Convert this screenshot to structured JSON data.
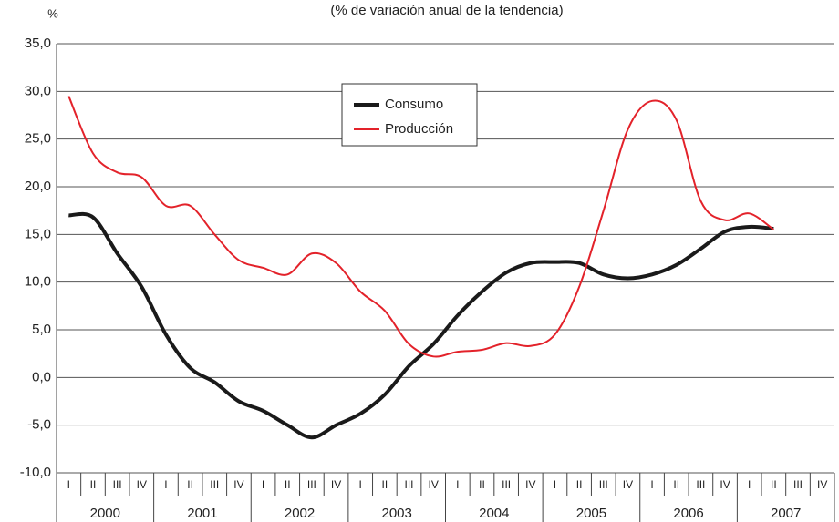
{
  "chart_data": {
    "type": "line",
    "title": "(% de variación anual de la tendencia)",
    "y_label": "%",
    "categories": [
      "I",
      "II",
      "III",
      "IV",
      "I",
      "II",
      "III",
      "IV",
      "I",
      "II",
      "III",
      "IV",
      "I",
      "II",
      "III",
      "IV",
      "I",
      "II",
      "III",
      "IV",
      "I",
      "II",
      "III",
      "IV",
      "I",
      "II",
      "III",
      "IV",
      "I",
      "II",
      "III",
      "IV"
    ],
    "years": [
      "2000",
      "2001",
      "2002",
      "2003",
      "2004",
      "2005",
      "2006",
      "2007"
    ],
    "series": [
      {
        "name": "Consumo",
        "color": "#1a1a1a",
        "values": [
          17.0,
          16.8,
          13.0,
          9.5,
          4.5,
          1.0,
          -0.5,
          -2.5,
          -3.5,
          -5.0,
          -6.3,
          -5.0,
          -3.8,
          -1.8,
          1.2,
          3.5,
          6.5,
          9.0,
          11.0,
          12.0,
          12.1,
          12.0,
          10.8,
          10.4,
          10.8,
          11.8,
          13.5,
          15.3,
          15.8,
          15.6,
          null,
          null
        ]
      },
      {
        "name": "Producción",
        "color": "#e3222a",
        "values": [
          29.5,
          23.5,
          21.5,
          21.0,
          18.0,
          18.0,
          15.0,
          12.3,
          11.5,
          10.8,
          13.0,
          12.0,
          9.0,
          7.0,
          3.5,
          2.2,
          2.7,
          2.9,
          3.6,
          3.3,
          4.5,
          9.5,
          17.5,
          26.0,
          29.0,
          27.0,
          18.5,
          16.5,
          17.2,
          15.5,
          null,
          null
        ]
      }
    ],
    "ylim": [
      -10,
      35
    ],
    "yticks": [
      {
        "value": -10,
        "label": "-10,0"
      },
      {
        "value": -5,
        "label": "-5,0"
      },
      {
        "value": 0,
        "label": "0,0"
      },
      {
        "value": 5,
        "label": "5,0"
      },
      {
        "value": 10,
        "label": "10,0"
      },
      {
        "value": 15,
        "label": "15,0"
      },
      {
        "value": 20,
        "label": "20,0"
      },
      {
        "value": 25,
        "label": "25,0"
      },
      {
        "value": 30,
        "label": "30,0"
      },
      {
        "value": 35,
        "label": "35,0"
      }
    ],
    "grid": true,
    "legend": "top"
  }
}
